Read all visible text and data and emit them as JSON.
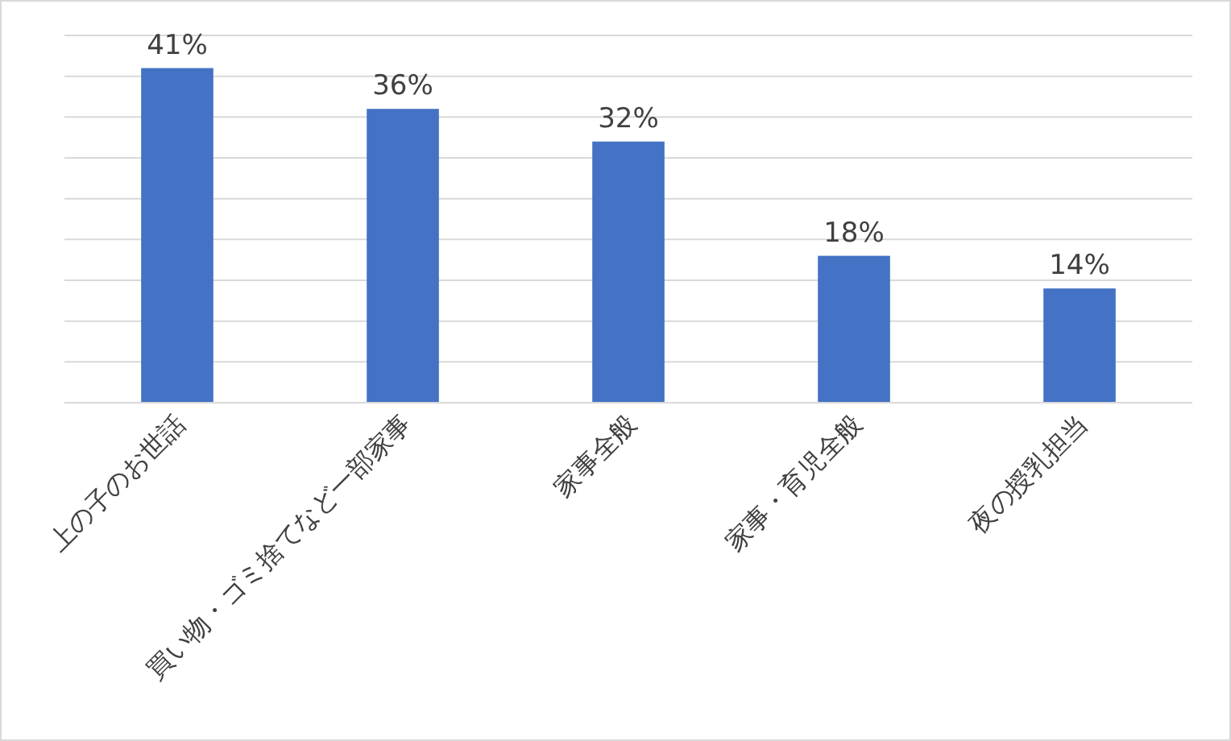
{
  "chart_data": {
    "type": "bar",
    "categories": [
      "上の子のお世話",
      "買い物・ゴミ捨てなど一部家事",
      "家事全般",
      "家事・育児全般",
      "夜の授乳担当"
    ],
    "values": [
      41,
      36,
      32,
      18,
      14
    ],
    "value_labels": [
      "41%",
      "36%",
      "32%",
      "18%",
      "14%"
    ],
    "color": "#4472c4",
    "ylim": [
      0,
      45
    ],
    "yticks": [
      {
        "value": 0,
        "label": null
      },
      {
        "value": 5,
        "label": null
      },
      {
        "value": 10,
        "label": null
      },
      {
        "value": 15,
        "label": null
      },
      {
        "value": 20,
        "label": null
      },
      {
        "value": 25,
        "label": null
      },
      {
        "value": 30,
        "label": null
      },
      {
        "value": 35,
        "label": null
      },
      {
        "value": 40,
        "label": null
      },
      {
        "value": 45,
        "label": null
      }
    ],
    "grid": "y",
    "tick_labels": "x"
  }
}
